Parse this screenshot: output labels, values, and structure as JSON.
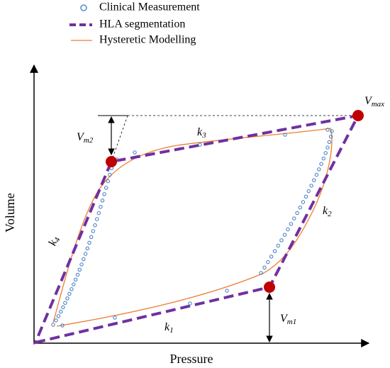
{
  "legend": {
    "items": [
      "Clinical Measurement",
      "HLA segmentation",
      "Hysteretic Modelling"
    ]
  },
  "axes": {
    "x_label": "Pressure",
    "y_label": "Volume"
  },
  "annotations": {
    "v_max": {
      "base": "V",
      "sub": "max"
    },
    "v_m1": {
      "base": "V",
      "sub": "m1"
    },
    "v_m2": {
      "base": "V",
      "sub": "m2"
    },
    "k1": {
      "base": "k",
      "sub": "1"
    },
    "k2": {
      "base": "k",
      "sub": "2"
    },
    "k3": {
      "base": "k",
      "sub": "3"
    },
    "k4": {
      "base": "k",
      "sub": "4"
    }
  }
}
